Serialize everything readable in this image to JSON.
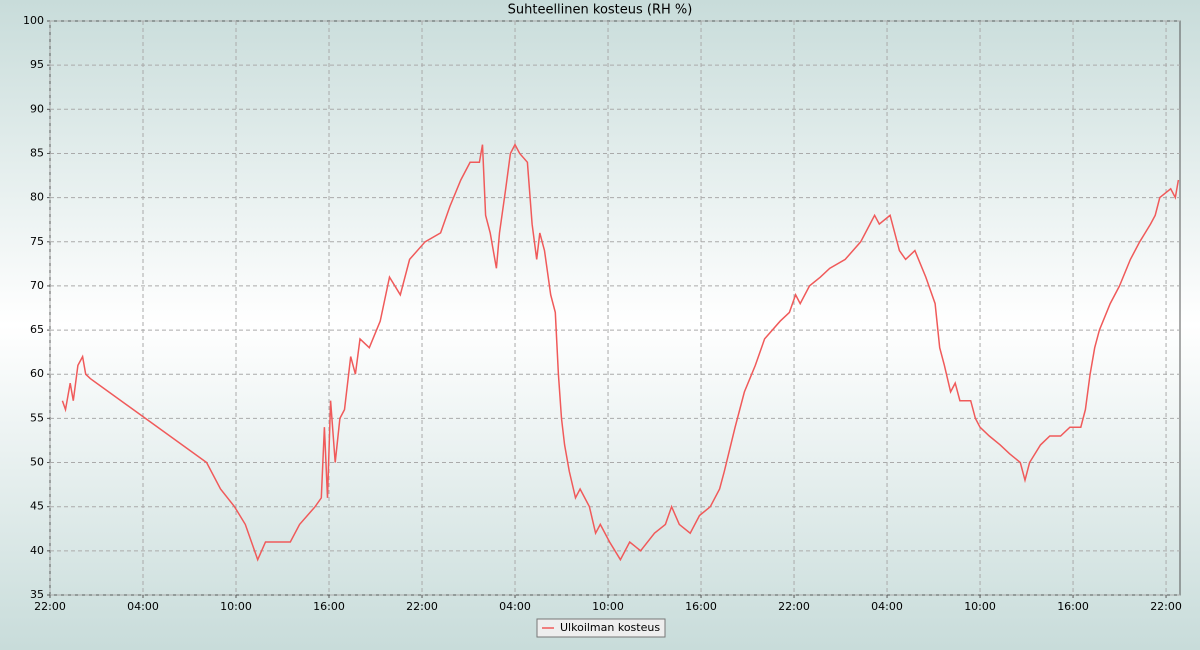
{
  "chart_data": {
    "type": "line",
    "title": "Suhteellinen kosteus (RH %)",
    "x": [
      0.8,
      1.0,
      1.3,
      1.5,
      1.8,
      2.1,
      2.3,
      2.6,
      10.1,
      11.0,
      11.9,
      12.6,
      13.4,
      13.9,
      15.5,
      16.1,
      17.1,
      17.5,
      17.7,
      17.9,
      18.1,
      18.4,
      18.7,
      19.0,
      19.4,
      19.7,
      20.0,
      20.6,
      21.3,
      21.9,
      22.6,
      23.2,
      24.2,
      25.2,
      25.8,
      26.5,
      27.1,
      27.7,
      27.9,
      28.1,
      28.4,
      28.8,
      29.0,
      29.4,
      29.7,
      30.0,
      30.3,
      30.8,
      31.1,
      31.4,
      31.6,
      31.9,
      32.3,
      32.6,
      32.8,
      33.0,
      33.2,
      33.5,
      33.9,
      34.2,
      34.8,
      35.2,
      35.5,
      36.1,
      36.8,
      37.4,
      38.1,
      39.0,
      39.7,
      40.1,
      40.6,
      41.3,
      41.9,
      42.6,
      43.2,
      43.5,
      44.2,
      44.8,
      45.5,
      46.1,
      47.1,
      47.7,
      48.1,
      48.4,
      49.0,
      49.7,
      50.3,
      51.3,
      52.3,
      52.9,
      53.2,
      53.5,
      54.2,
      54.8,
      55.2,
      55.8,
      56.5,
      57.1,
      57.4,
      57.7,
      58.1,
      58.4,
      58.7,
      59.4,
      59.7,
      60.0,
      60.6,
      61.3,
      61.9,
      62.6,
      62.9,
      63.2,
      63.9,
      64.5,
      65.2,
      65.8,
      66.5,
      66.8,
      67.1,
      67.4,
      67.7,
      68.4,
      69.0,
      69.7,
      70.3,
      71.0,
      71.3,
      71.6,
      72.3,
      72.6,
      72.8
    ],
    "series": [
      {
        "name": "Ulkoilman kosteus",
        "color": "#f05a5a",
        "values": [
          57,
          56,
          59,
          57,
          61,
          62,
          60,
          59.5,
          50,
          47,
          45,
          43,
          39,
          41,
          41,
          43,
          45,
          46,
          54,
          46,
          57,
          50,
          55,
          56,
          62,
          60,
          64,
          63,
          66,
          71,
          69,
          73,
          75,
          76,
          79,
          82,
          84,
          84,
          86,
          78,
          76,
          72,
          76,
          81,
          85,
          86,
          85,
          84,
          77,
          73,
          76,
          74,
          69,
          67,
          60,
          55,
          52,
          49,
          46,
          47,
          45,
          42,
          43,
          41,
          39,
          41,
          40,
          42,
          43,
          45,
          43,
          42,
          44,
          45,
          47,
          49,
          54,
          58,
          61,
          64,
          66,
          67,
          69,
          68,
          70,
          71,
          72,
          73,
          75,
          77,
          78,
          77,
          78,
          74,
          73,
          74,
          71,
          68,
          63,
          61,
          58,
          59,
          57,
          57,
          55,
          54,
          53,
          52,
          51,
          50,
          48,
          50,
          52,
          53,
          53,
          54,
          54,
          56,
          60,
          63,
          65,
          68,
          70,
          73,
          75,
          77,
          78,
          80,
          81,
          80,
          82
        ]
      }
    ],
    "xlim": [
      0,
      72.9
    ],
    "xticks": [
      {
        "value": 0,
        "label": "22:00"
      },
      {
        "value": 6,
        "label": "04:00"
      },
      {
        "value": 12,
        "label": "10:00"
      },
      {
        "value": 18,
        "label": "16:00"
      },
      {
        "value": 24,
        "label": "22:00"
      },
      {
        "value": 30,
        "label": "04:00"
      },
      {
        "value": 36,
        "label": "10:00"
      },
      {
        "value": 42,
        "label": "16:00"
      },
      {
        "value": 48,
        "label": "22:00"
      },
      {
        "value": 54,
        "label": "04:00"
      },
      {
        "value": 60,
        "label": "10:00"
      },
      {
        "value": 66,
        "label": "16:00"
      },
      {
        "value": 72,
        "label": "22:00"
      }
    ],
    "ylim": [
      35,
      100
    ],
    "yticks": [
      35,
      40,
      45,
      50,
      55,
      60,
      65,
      70,
      75,
      80,
      85,
      90,
      95,
      100
    ],
    "grid": true
  }
}
